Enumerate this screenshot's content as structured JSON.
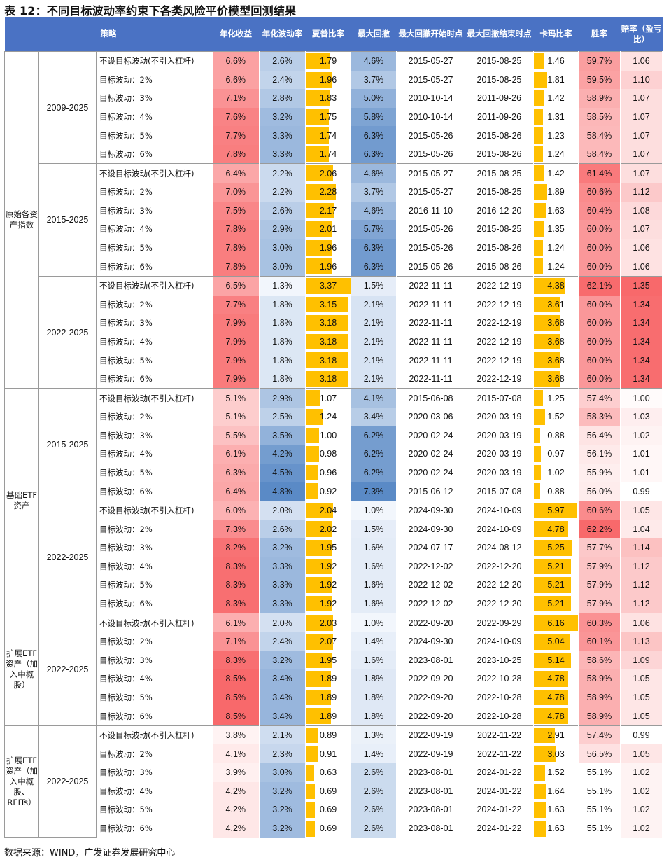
{
  "title": "表 12：不同目标波动率约束下各类风险平价模型回测结果",
  "headers": [
    "策略",
    "年化收益",
    "年化波动率",
    "夏普比率",
    "最大回撤",
    "最大回撤开始时点",
    "最大回撤结束时点",
    "卡玛比率",
    "胜率",
    "赔率（盈亏比）"
  ],
  "groups": [
    {
      "name": "原始各资产指数",
      "periods": [
        {
          "period": "2009-2025",
          "rows": [
            [
              "不设目标波动(不引入杠杆)",
              "6.6%",
              "2.6%",
              "1.79",
              "4.6%",
              "2015-05-27",
              "2015-08-25",
              "1.46",
              "59.7%",
              "1.06"
            ],
            [
              "目标波动：2%",
              "6.6%",
              "2.4%",
              "1.96",
              "3.7%",
              "2015-05-27",
              "2015-08-25",
              "1.81",
              "59.5%",
              "1.10"
            ],
            [
              "目标波动：3%",
              "7.1%",
              "2.8%",
              "1.83",
              "5.0%",
              "2010-10-14",
              "2011-09-26",
              "1.42",
              "58.9%",
              "1.07"
            ],
            [
              "目标波动：4%",
              "7.6%",
              "3.2%",
              "1.75",
              "5.8%",
              "2010-10-14",
              "2011-09-26",
              "1.31",
              "58.5%",
              "1.07"
            ],
            [
              "目标波动：5%",
              "7.7%",
              "3.3%",
              "1.74",
              "6.3%",
              "2015-05-26",
              "2015-08-26",
              "1.23",
              "58.4%",
              "1.07"
            ],
            [
              "目标波动：6%",
              "7.8%",
              "3.3%",
              "1.74",
              "6.3%",
              "2015-05-26",
              "2015-08-26",
              "1.24",
              "58.4%",
              "1.07"
            ]
          ]
        },
        {
          "period": "2015-2025",
          "rows": [
            [
              "不设目标波动(不引入杠杆)",
              "6.4%",
              "2.2%",
              "2.06",
              "4.6%",
              "2015-05-27",
              "2015-08-25",
              "1.42",
              "61.4%",
              "1.07"
            ],
            [
              "目标波动：2%",
              "7.0%",
              "2.2%",
              "2.28",
              "3.7%",
              "2015-05-27",
              "2015-08-25",
              "1.89",
              "60.6%",
              "1.12"
            ],
            [
              "目标波动：3%",
              "7.5%",
              "2.6%",
              "2.17",
              "4.6%",
              "2016-11-10",
              "2016-12-20",
              "1.63",
              "60.4%",
              "1.08"
            ],
            [
              "目标波动：4%",
              "7.8%",
              "2.9%",
              "2.01",
              "5.7%",
              "2015-05-26",
              "2015-08-25",
              "1.35",
              "60.0%",
              "1.07"
            ],
            [
              "目标波动：5%",
              "7.8%",
              "3.0%",
              "1.96",
              "6.3%",
              "2015-05-26",
              "2015-08-26",
              "1.24",
              "60.0%",
              "1.06"
            ],
            [
              "目标波动：6%",
              "7.8%",
              "3.0%",
              "1.96",
              "6.3%",
              "2015-05-26",
              "2015-08-26",
              "1.24",
              "60.0%",
              "1.06"
            ]
          ]
        },
        {
          "period": "2022-2025",
          "rows": [
            [
              "不设目标波动(不引入杠杆)",
              "6.5%",
              "1.3%",
              "3.37",
              "1.5%",
              "2022-11-11",
              "2022-12-19",
              "4.38",
              "62.1%",
              "1.35"
            ],
            [
              "目标波动：2%",
              "7.7%",
              "1.8%",
              "3.15",
              "2.1%",
              "2022-11-11",
              "2022-12-19",
              "3.61",
              "60.0%",
              "1.34"
            ],
            [
              "目标波动：3%",
              "7.9%",
              "1.8%",
              "3.18",
              "2.1%",
              "2022-11-11",
              "2022-12-19",
              "3.68",
              "60.0%",
              "1.34"
            ],
            [
              "目标波动：4%",
              "7.9%",
              "1.8%",
              "3.18",
              "2.1%",
              "2022-11-11",
              "2022-12-19",
              "3.68",
              "60.0%",
              "1.34"
            ],
            [
              "目标波动：5%",
              "7.9%",
              "1.8%",
              "3.18",
              "2.1%",
              "2022-11-11",
              "2022-12-19",
              "3.68",
              "60.0%",
              "1.34"
            ],
            [
              "目标波动：6%",
              "7.9%",
              "1.8%",
              "3.18",
              "2.1%",
              "2022-11-11",
              "2022-12-19",
              "3.68",
              "60.0%",
              "1.34"
            ]
          ]
        }
      ]
    },
    {
      "name": "基础ETF资产",
      "periods": [
        {
          "period": "2015-2025",
          "rows": [
            [
              "不设目标波动(不引入杠杆)",
              "5.1%",
              "2.9%",
              "1.07",
              "4.1%",
              "2015-06-08",
              "2015-07-08",
              "1.25",
              "57.4%",
              "1.00"
            ],
            [
              "目标波动：2%",
              "5.1%",
              "2.5%",
              "1.24",
              "3.4%",
              "2020-03-06",
              "2020-03-19",
              "1.52",
              "58.3%",
              "1.03"
            ],
            [
              "目标波动：3%",
              "5.5%",
              "3.5%",
              "1.00",
              "6.2%",
              "2020-02-24",
              "2020-03-19",
              "0.88",
              "56.4%",
              "1.02"
            ],
            [
              "目标波动：4%",
              "6.1%",
              "4.2%",
              "0.98",
              "6.2%",
              "2020-02-24",
              "2020-03-19",
              "0.97",
              "56.1%",
              "1.01"
            ],
            [
              "目标波动：5%",
              "6.3%",
              "4.5%",
              "0.96",
              "6.2%",
              "2020-02-24",
              "2020-03-19",
              "1.02",
              "55.9%",
              "1.01"
            ],
            [
              "目标波动：6%",
              "6.4%",
              "4.8%",
              "0.92",
              "7.3%",
              "2015-06-12",
              "2015-07-08",
              "0.88",
              "56.0%",
              "0.99"
            ]
          ]
        },
        {
          "period": "2022-2025",
          "rows": [
            [
              "不设目标波动(不引入杠杆)",
              "6.0%",
              "2.0%",
              "2.04",
              "1.0%",
              "2024-09-30",
              "2024-10-09",
              "5.97",
              "60.6%",
              "1.05"
            ],
            [
              "目标波动：2%",
              "7.3%",
              "2.6%",
              "2.02",
              "1.5%",
              "2024-09-30",
              "2024-10-09",
              "4.78",
              "62.2%",
              "1.04"
            ],
            [
              "目标波动：3%",
              "8.2%",
              "3.2%",
              "1.95",
              "1.6%",
              "2024-07-17",
              "2024-08-12",
              "5.25",
              "57.7%",
              "1.14"
            ],
            [
              "目标波动：4%",
              "8.3%",
              "3.3%",
              "1.92",
              "1.6%",
              "2022-12-02",
              "2022-12-20",
              "5.21",
              "57.9%",
              "1.12"
            ],
            [
              "目标波动：5%",
              "8.3%",
              "3.3%",
              "1.92",
              "1.6%",
              "2022-12-02",
              "2022-12-20",
              "5.21",
              "57.9%",
              "1.12"
            ],
            [
              "目标波动：6%",
              "8.3%",
              "3.3%",
              "1.92",
              "1.6%",
              "2022-12-02",
              "2022-12-20",
              "5.21",
              "57.9%",
              "1.12"
            ]
          ]
        }
      ]
    },
    {
      "name": "扩展ETF资产（加入中概股）",
      "periods": [
        {
          "period": "2022-2025",
          "rows": [
            [
              "不设目标波动(不引入杠杆)",
              "6.1%",
              "2.0%",
              "2.03",
              "1.0%",
              "2022-09-20",
              "2022-09-29",
              "6.16",
              "60.3%",
              "1.06"
            ],
            [
              "目标波动：2%",
              "7.1%",
              "2.4%",
              "2.07",
              "1.4%",
              "2024-09-30",
              "2024-10-09",
              "5.04",
              "60.1%",
              "1.13"
            ],
            [
              "目标波动：3%",
              "8.3%",
              "3.2%",
              "1.95",
              "1.6%",
              "2023-08-01",
              "2023-10-25",
              "5.14",
              "58.6%",
              "1.09"
            ],
            [
              "目标波动：4%",
              "8.5%",
              "3.4%",
              "1.89",
              "1.8%",
              "2022-09-20",
              "2022-10-28",
              "4.78",
              "58.9%",
              "1.05"
            ],
            [
              "目标波动：5%",
              "8.5%",
              "3.4%",
              "1.89",
              "1.8%",
              "2022-09-20",
              "2022-10-28",
              "4.78",
              "58.9%",
              "1.05"
            ],
            [
              "目标波动：6%",
              "8.5%",
              "3.4%",
              "1.89",
              "1.8%",
              "2022-09-20",
              "2022-10-28",
              "4.78",
              "58.9%",
              "1.05"
            ]
          ]
        }
      ]
    },
    {
      "name": "扩展ETF资产（加入中概股、REITs）",
      "periods": [
        {
          "period": "2022-2025",
          "rows": [
            [
              "不设目标波动(不引入杠杆)",
              "3.8%",
              "2.1%",
              "0.89",
              "1.3%",
              "2022-09-19",
              "2022-11-22",
              "2.91",
              "57.4%",
              "0.99"
            ],
            [
              "目标波动：2%",
              "4.1%",
              "2.3%",
              "0.91",
              "1.4%",
              "2022-09-19",
              "2022-11-22",
              "3.03",
              "56.5%",
              "1.05"
            ],
            [
              "目标波动：3%",
              "3.9%",
              "3.0%",
              "0.63",
              "2.6%",
              "2023-08-01",
              "2024-01-22",
              "1.52",
              "55.1%",
              "1.02"
            ],
            [
              "目标波动：4%",
              "4.2%",
              "3.2%",
              "0.69",
              "2.6%",
              "2023-08-01",
              "2024-01-22",
              "1.64",
              "55.1%",
              "1.02"
            ],
            [
              "目标波动：5%",
              "4.2%",
              "3.2%",
              "0.69",
              "2.6%",
              "2023-08-01",
              "2024-01-22",
              "1.63",
              "55.1%",
              "1.02"
            ],
            [
              "目标波动：6%",
              "4.2%",
              "3.2%",
              "0.69",
              "2.6%",
              "2023-08-01",
              "2024-01-22",
              "1.63",
              "55.1%",
              "1.02"
            ]
          ]
        }
      ]
    }
  ],
  "footer": "数据来源：WIND，广发证券发展研究中心",
  "colors": {
    "header": "#4a72c4",
    "return_high": "#f8696b",
    "return_low": "#fff3f3",
    "vol_high": "#5a8ac6",
    "vol_low": "#f2f6fc",
    "bar": "#ffc000",
    "win_high": "#f8696b",
    "win_low": "#ffffff",
    "odds_high": "#f8696b",
    "odds_low": "#ffffff"
  }
}
